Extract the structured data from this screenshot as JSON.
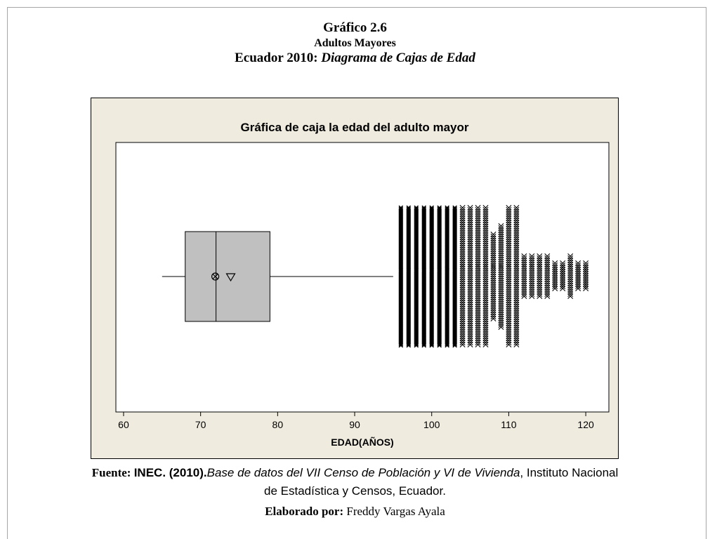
{
  "header": {
    "figure_number": "Gráfico 2.6",
    "subtitle": "Adultos Mayores",
    "line3_prefix": "Ecuador 2010: ",
    "line3_italic": "Diagrama de Cajas de Edad"
  },
  "chart_data": {
    "type": "boxplot",
    "title": "Gráfica de caja la edad del adulto mayor",
    "xlabel": "EDAD(AÑOS)",
    "xlim": [
      59,
      123
    ],
    "xticks": [
      60,
      70,
      80,
      90,
      100,
      110,
      120
    ],
    "box": {
      "whisker_low": 65,
      "q1": 68,
      "median": 72,
      "q3": 79,
      "whisker_high": 95,
      "mean": 72,
      "median_ci_marker": 74
    },
    "outliers": [
      {
        "age": 96,
        "stack": "tall"
      },
      {
        "age": 97,
        "stack": "tall"
      },
      {
        "age": 98,
        "stack": "tall"
      },
      {
        "age": 99,
        "stack": "tall"
      },
      {
        "age": 100,
        "stack": "tall"
      },
      {
        "age": 101,
        "stack": "tall"
      },
      {
        "age": 102,
        "stack": "tall"
      },
      {
        "age": 103,
        "stack": "tall"
      },
      {
        "age": 104,
        "stack": "tall"
      },
      {
        "age": 105,
        "stack": "tall"
      },
      {
        "age": 106,
        "stack": "tall"
      },
      {
        "age": 107,
        "stack": "tall"
      },
      {
        "age": 108,
        "stack": "shorter"
      },
      {
        "age": 109,
        "stack": "medium"
      },
      {
        "age": 110,
        "stack": "tall"
      },
      {
        "age": 111,
        "stack": "tall"
      },
      {
        "age": 112,
        "stack": "short"
      },
      {
        "age": 113,
        "stack": "short"
      },
      {
        "age": 114,
        "stack": "short"
      },
      {
        "age": 115,
        "stack": "short"
      },
      {
        "age": 116,
        "stack": "small"
      },
      {
        "age": 117,
        "stack": "small"
      },
      {
        "age": 118,
        "stack": "short"
      },
      {
        "age": 119,
        "stack": "small"
      },
      {
        "age": 120,
        "stack": "small"
      }
    ],
    "colors": {
      "outer_background": "#efebdf",
      "plot_background": "#ffffff",
      "box_fill": "#c0c0c0",
      "ink": "#000000"
    }
  },
  "footer": {
    "source_label": "Fuente: ",
    "source_author": "INEC. (2010).",
    "source_title": "Base de datos del VII Censo de Población y VI de Vivienda",
    "source_rest": ", Instituto Nacional",
    "source_line2": "de Estadística y Censos, Ecuador.",
    "prepared_label": "Elaborado por:",
    "prepared_name": " Freddy Vargas Ayala"
  }
}
